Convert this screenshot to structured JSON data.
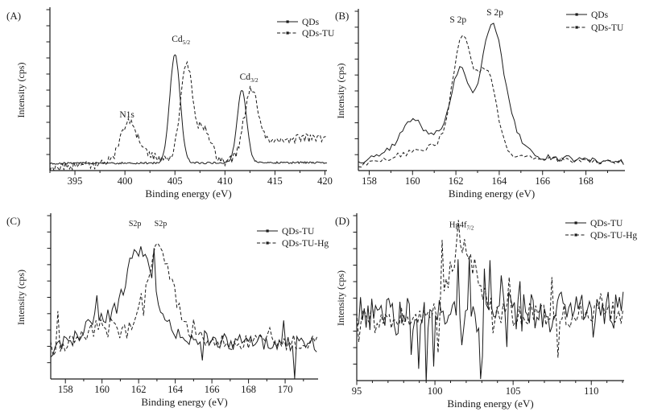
{
  "figure": {
    "background": "#ffffff",
    "line_color": "#1a1a1a",
    "description": "XPS spectra, four panels"
  },
  "chart_data": [
    {
      "type": "line",
      "panel_label": "(A)",
      "xlabel": "Binding energy (eV)",
      "ylabel": "Intensity (cps)",
      "xlim": [
        392.5,
        420.2
      ],
      "x_major_ticks": [
        395,
        400,
        405,
        410,
        415,
        420
      ],
      "x_minor_step": 2.5,
      "y_axis": {
        "tick_count": 10,
        "labels_shown": false
      },
      "annotations": [
        {
          "text": "N1s",
          "sub": "",
          "x": 400.2,
          "y": 0.33
        },
        {
          "text": "Cd",
          "sub": "5/2",
          "x": 405.6,
          "y": 0.8
        },
        {
          "text": "Cd",
          "sub": "3/2",
          "x": 412.4,
          "y": 0.565
        }
      ],
      "legend": [
        {
          "label": "QDs",
          "style": "solid"
        },
        {
          "label": "QDs-TU",
          "style": "dashed"
        }
      ],
      "series": [
        {
          "name": "QDs",
          "style": "solid",
          "seed": 101,
          "noise": 0.006,
          "step": 0.1,
          "baseline": [
            [
              392.5,
              0.045
            ],
            [
              420.2,
              0.05
            ]
          ],
          "peaks": [
            {
              "c": 405.0,
              "h": 0.675,
              "w": 0.52
            },
            {
              "c": 411.7,
              "h": 0.45,
              "w": 0.48
            }
          ]
        },
        {
          "name": "QDs-TU",
          "style": "dashed",
          "seed": 202,
          "noise": 0.028,
          "step": 0.14,
          "baseline": [
            [
              392.5,
              0.02
            ],
            [
              396.5,
              0.03
            ],
            [
              398.3,
              0.05
            ],
            [
              402.0,
              0.09
            ],
            [
              404.5,
              0.07
            ],
            [
              409.5,
              0.05
            ],
            [
              411.0,
              0.06
            ],
            [
              413.8,
              0.15
            ],
            [
              415.5,
              0.19
            ],
            [
              418.0,
              0.2
            ],
            [
              420.2,
              0.21
            ]
          ],
          "peaks": [
            {
              "c": 400.4,
              "h": 0.24,
              "w": 0.78
            },
            {
              "c": 406.15,
              "h": 0.6,
              "w": 0.6
            },
            {
              "c": 407.9,
              "h": 0.2,
              "w": 0.7
            },
            {
              "c": 412.6,
              "h": 0.4,
              "w": 0.7
            }
          ]
        }
      ]
    },
    {
      "type": "line",
      "panel_label": "(B)",
      "xlabel": "Binding energy (eV)",
      "ylabel": "Intensity (cps)",
      "xlim": [
        157.5,
        169.8
      ],
      "x_major_ticks": [
        158,
        160,
        162,
        164,
        166,
        168
      ],
      "x_minor_step": 1,
      "y_axis": {
        "tick_count": 10,
        "labels_shown": false
      },
      "annotations": [
        {
          "text": "S 2p",
          "sub": "",
          "x": 162.1,
          "y": 0.93
        },
        {
          "text": "S 2p",
          "sub": "",
          "x": 163.8,
          "y": 0.975
        }
      ],
      "legend": [
        {
          "label": "QDs",
          "style": "solid"
        },
        {
          "label": "QDs-TU",
          "style": "dashed"
        }
      ],
      "series": [
        {
          "name": "QDs",
          "style": "solid",
          "seed": 303,
          "noise": 0.018,
          "step": 0.12,
          "baseline": [
            [
              157.5,
              0.04
            ],
            [
              158.8,
              0.12
            ],
            [
              159.6,
              0.2
            ],
            [
              161.3,
              0.22
            ],
            [
              164.6,
              0.12
            ],
            [
              165.6,
              0.09
            ],
            [
              169.8,
              0.05
            ]
          ],
          "peaks": [
            {
              "c": 160.0,
              "h": 0.12,
              "w": 0.38
            },
            {
              "c": 162.2,
              "h": 0.44,
              "w": 0.42
            },
            {
              "c": 163.65,
              "h": 0.75,
              "w": 0.48
            },
            {
              "c": 164.5,
              "h": 0.12,
              "w": 0.5
            }
          ]
        },
        {
          "name": "QDs-TU",
          "style": "dashed",
          "seed": 404,
          "noise": 0.018,
          "step": 0.13,
          "baseline": [
            [
              157.5,
              0.03
            ],
            [
              159.0,
              0.08
            ],
            [
              160.5,
              0.14
            ],
            [
              161.2,
              0.15
            ],
            [
              164.8,
              0.08
            ],
            [
              169.8,
              0.05
            ]
          ],
          "peaks": [
            {
              "c": 162.3,
              "h": 0.7,
              "w": 0.46
            },
            {
              "c": 163.45,
              "h": 0.5,
              "w": 0.42
            }
          ]
        }
      ]
    },
    {
      "type": "line",
      "panel_label": "(C)",
      "xlabel": "Binding energy (eV)",
      "ylabel": "Intensity (cps)",
      "xlim": [
        157.2,
        171.8
      ],
      "x_major_ticks": [
        158,
        160,
        162,
        164,
        166,
        168,
        170
      ],
      "x_minor_step": 1,
      "y_axis": {
        "tick_count": 10,
        "labels_shown": false
      },
      "annotations": [
        {
          "text": "S2p",
          "sub": "",
          "x": 161.8,
          "y": 0.935
        },
        {
          "text": "S2p",
          "sub": "",
          "x": 163.2,
          "y": 0.935
        }
      ],
      "legend": [
        {
          "label": "QDs-TU",
          "style": "solid"
        },
        {
          "label": "QDs-TU-Hg",
          "style": "dashed"
        }
      ],
      "series": [
        {
          "name": "QDs-TU",
          "style": "solid",
          "seed": 505,
          "noise": 0.05,
          "step": 0.12,
          "spike": {
            "p": 0.07,
            "amp": 0.26
          },
          "baseline": [
            [
              157.2,
              0.18
            ],
            [
              158.6,
              0.26
            ],
            [
              159.9,
              0.38
            ],
            [
              160.9,
              0.29
            ],
            [
              163.6,
              0.28
            ],
            [
              166.5,
              0.23
            ],
            [
              171.8,
              0.21
            ]
          ],
          "peaks": [
            {
              "c": 162.0,
              "h": 0.5,
              "w": 0.75
            }
          ]
        },
        {
          "name": "QDs-TU-Hg",
          "style": "dashed",
          "seed": 606,
          "noise": 0.05,
          "step": 0.13,
          "spike": {
            "p": 0.07,
            "amp": 0.22
          },
          "baseline": [
            [
              157.2,
              0.18
            ],
            [
              158.8,
              0.24
            ],
            [
              160.2,
              0.36
            ],
            [
              161.2,
              0.27
            ],
            [
              164.2,
              0.28
            ],
            [
              166.2,
              0.23
            ],
            [
              171.8,
              0.23
            ]
          ],
          "peaks": [
            {
              "c": 163.1,
              "h": 0.52,
              "w": 0.7
            }
          ]
        }
      ]
    },
    {
      "type": "line",
      "panel_label": "(D)",
      "xlabel": "Binding energy (eV)",
      "ylabel": "Intensity (cps)",
      "xlim": [
        95,
        112.1
      ],
      "x_major_ticks": [
        95,
        100,
        105,
        110
      ],
      "x_minor_step": 1,
      "y_axis": {
        "tick_count": 10,
        "labels_shown": false
      },
      "annotations": [
        {
          "text": "Hg4f",
          "sub": "7/2",
          "x": 101.7,
          "y": 0.93
        }
      ],
      "legend": [
        {
          "label": "QDs-TU",
          "style": "solid"
        },
        {
          "label": "QDs-TU-Hg",
          "style": "dashed"
        }
      ],
      "series": [
        {
          "name": "QDs-TU",
          "style": "solid",
          "seed": 707,
          "noise": 0.11,
          "step": 0.12,
          "spike": {
            "p": 0.18,
            "amp": 0.4
          },
          "baseline": [
            [
              95,
              0.4
            ],
            [
              104,
              0.4
            ],
            [
              107,
              0.43
            ],
            [
              112.1,
              0.44
            ]
          ],
          "peaks": []
        },
        {
          "name": "QDs-TU-Hg",
          "style": "dashed",
          "seed": 808,
          "noise": 0.07,
          "step": 0.13,
          "spike": {
            "p": 0.12,
            "amp": 0.3
          },
          "baseline": [
            [
              95,
              0.38
            ],
            [
              112.1,
              0.41
            ]
          ],
          "peaks": [
            {
              "c": 101.8,
              "h": 0.45,
              "w": 0.85
            }
          ]
        }
      ]
    }
  ]
}
